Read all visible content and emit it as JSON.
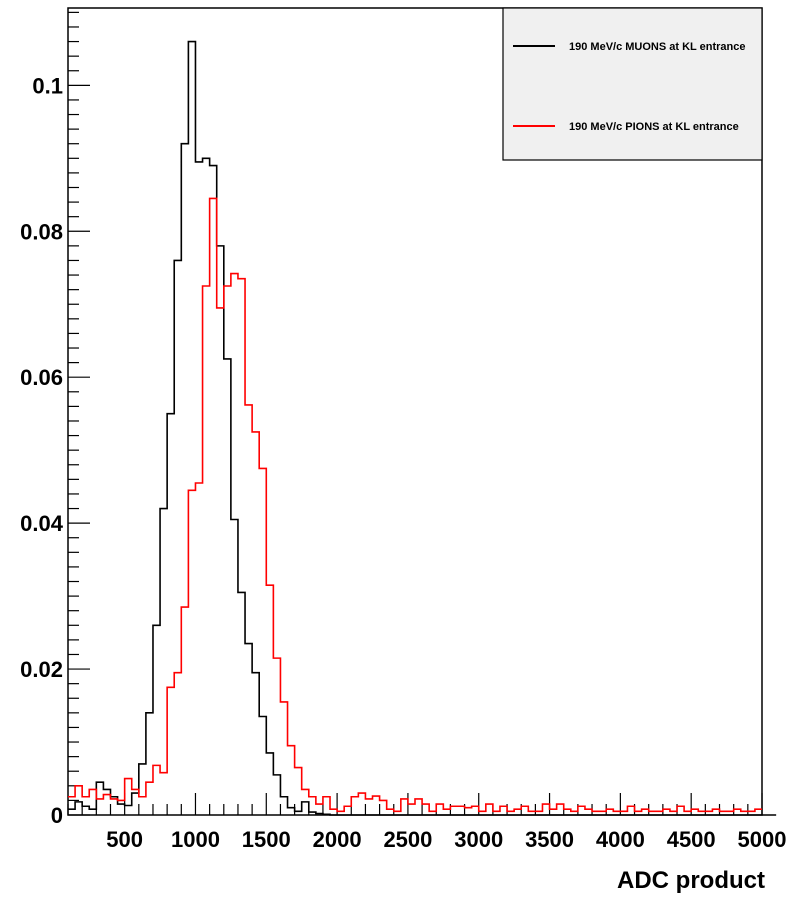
{
  "chart_data": {
    "type": "histogram",
    "title": "",
    "xlabel": "ADC product",
    "ylabel": "",
    "xlim": [
      100,
      5000
    ],
    "ylim": [
      0,
      0.1106
    ],
    "bin_width": 50,
    "x_ticks": [
      500,
      1000,
      1500,
      2000,
      2500,
      3000,
      3500,
      4000,
      4500,
      5000
    ],
    "x_tick_labels": [
      "500",
      "1000",
      "1500",
      "2000",
      "2500",
      "3000",
      "3500",
      "4000",
      "4500",
      "5000"
    ],
    "y_ticks": [
      0,
      0.02,
      0.04,
      0.06,
      0.08,
      0.1
    ],
    "y_tick_labels": [
      "0",
      "0.02",
      "0.04",
      "0.06",
      "0.08",
      "0.1"
    ],
    "legend": {
      "position": "top-right",
      "fill": "#f0f0f0"
    },
    "series": [
      {
        "name": "190 MeV/c MUONS at KL entrance",
        "color": "#000000",
        "values": [
          0.0008,
          0.0018,
          0.0012,
          0.0008,
          0.0045,
          0.0035,
          0.0025,
          0.0015,
          0.0013,
          0.003,
          0.007,
          0.014,
          0.026,
          0.042,
          0.055,
          0.076,
          0.092,
          0.106,
          0.0895,
          0.09,
          0.089,
          0.078,
          0.0625,
          0.0405,
          0.0305,
          0.0235,
          0.0195,
          0.0135,
          0.0085,
          0.0055,
          0.0025,
          0.001,
          0.0005,
          0.0018,
          0.0004,
          0.0002,
          0.0001,
          0,
          0,
          0,
          0,
          0,
          0,
          0,
          0,
          0,
          0,
          0,
          0,
          0,
          0,
          0,
          0,
          0,
          0,
          0,
          0,
          0,
          0,
          0,
          0,
          0,
          0,
          0,
          0,
          0,
          0,
          0,
          0,
          0,
          0,
          0,
          0,
          0,
          0,
          0,
          0,
          0,
          0,
          0,
          0,
          0,
          0,
          0,
          0,
          0,
          0,
          0,
          0,
          0,
          0,
          0,
          0,
          0,
          0,
          0,
          0,
          0,
          0,
          0
        ]
      },
      {
        "name": "190 MeV/c PIONS at KL entrance",
        "color": "#ff0000",
        "values": [
          0.0025,
          0.004,
          0.0025,
          0.0035,
          0.0022,
          0.0028,
          0.0022,
          0.002,
          0.005,
          0.0035,
          0.0025,
          0.0045,
          0.0068,
          0.0058,
          0.0175,
          0.0195,
          0.0285,
          0.0445,
          0.0455,
          0.0725,
          0.0845,
          0.0695,
          0.0725,
          0.0742,
          0.0735,
          0.0562,
          0.0525,
          0.0475,
          0.0315,
          0.0215,
          0.0155,
          0.0095,
          0.0065,
          0.0035,
          0.0025,
          0.0015,
          0.0025,
          0.0008,
          0.0005,
          0.0012,
          0.0025,
          0.003,
          0.0022,
          0.0026,
          0.002,
          0.0008,
          0.0005,
          0.0022,
          0.0015,
          0.0022,
          0.0015,
          0.0005,
          0.0015,
          0.0008,
          0.0012,
          0.0012,
          0.001,
          0.0012,
          0.0005,
          0.0015,
          0.0005,
          0.0012,
          0.0005,
          0.0008,
          0.0012,
          0.0005,
          0.0005,
          0.0015,
          0.0008,
          0.0015,
          0.0008,
          0.0005,
          0.0012,
          0.0008,
          0.0005,
          0.0005,
          0.0008,
          0.0005,
          0.0005,
          0.0012,
          0.0005,
          0.0008,
          0.0005,
          0.0005,
          0.0008,
          0.0005,
          0.0012,
          0.0005,
          0.0008,
          0.0005,
          0.0005,
          0.0008,
          0.0005,
          0.0005,
          0.0008,
          0.0005,
          0.0005,
          0.0008
        ]
      }
    ]
  }
}
